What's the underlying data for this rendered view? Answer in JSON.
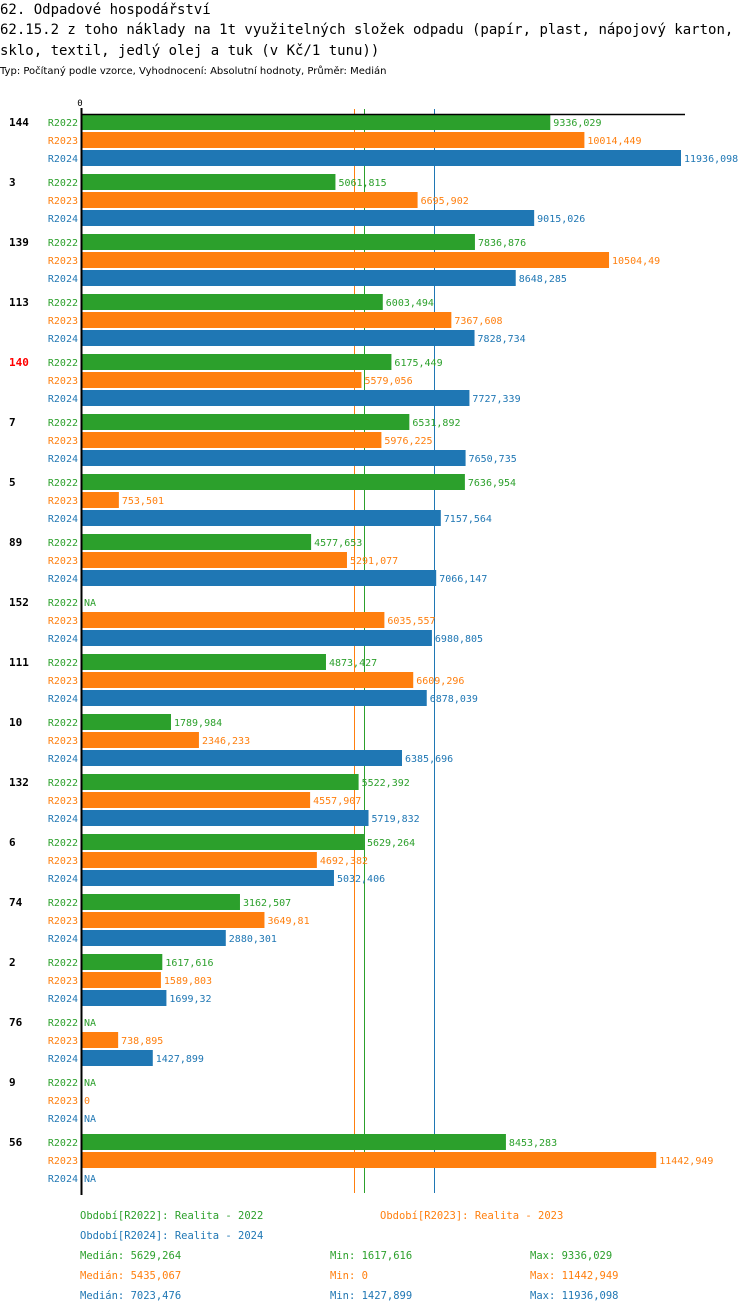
{
  "header": {
    "title": "62. Odpadové hospodářství",
    "subtitle": "62.15.2 z toho náklady na 1t využitelných složek odpadu (papír, plast, nápojový karton, sklo, textil, jedlý olej a tuk (v Kč/1 tunu))",
    "meta": "Typ: Počítaný podle vzorce, Vyhodnocení: Absolutní hodnoty, Průměr: Medián"
  },
  "colors": {
    "R2022": "#2ca02c",
    "R2023": "#ff7f0e",
    "R2024": "#1f77b4",
    "highlight": "#ff0000",
    "axis": "#000000"
  },
  "chart_data": {
    "type": "bar",
    "orientation": "horizontal",
    "title": "62.15.2 z toho náklady na 1t využitelných složek odpadu (papír, plast, nápojový karton, sklo, textil, jedlý olej a tuk (v Kč/1 tunu))",
    "xlabel": "",
    "ylabel": "",
    "x_tick_labels": [
      "0"
    ],
    "xlim": [
      0,
      11936.098
    ],
    "grid": false,
    "highlighted_category": "140",
    "categories": [
      "144",
      "3",
      "139",
      "113",
      "140",
      "7",
      "5",
      "89",
      "152",
      "111",
      "10",
      "132",
      "6",
      "74",
      "2",
      "76",
      "9",
      "56"
    ],
    "series": [
      {
        "name": "R2022",
        "values": [
          9336.029,
          5061.815,
          7836.876,
          6003.494,
          6175.449,
          6531.892,
          7636.954,
          4577.653,
          null,
          4873.427,
          1789.984,
          5522.392,
          5629.264,
          3162.507,
          1617.616,
          null,
          null,
          8453.283
        ],
        "labels": [
          "9336,029",
          "5061,815",
          "7836,876",
          "6003,494",
          "6175,449",
          "6531,892",
          "7636,954",
          "4577,653",
          "NA",
          "4873,427",
          "1789,984",
          "5522,392",
          "5629,264",
          "3162,507",
          "1617,616",
          "NA",
          "NA",
          "8453,283"
        ],
        "median": 5629.264
      },
      {
        "name": "R2023",
        "values": [
          10014.449,
          6695.902,
          10504.49,
          7367.608,
          5579.056,
          5976.225,
          753.501,
          5291.077,
          6035.557,
          6609.296,
          2346.233,
          4557.907,
          4692.382,
          3649.81,
          1589.803,
          738.895,
          0,
          11442.949
        ],
        "labels": [
          "10014,449",
          "6695,902",
          "10504,49",
          "7367,608",
          "5579,056",
          "5976,225",
          "753,501",
          "5291,077",
          "6035,557",
          "6609,296",
          "2346,233",
          "4557,907",
          "4692,382",
          "3649,81",
          "1589,803",
          "738,895",
          "0",
          "11442,949"
        ],
        "median": 5435.067
      },
      {
        "name": "R2024",
        "values": [
          11936.098,
          9015.026,
          8648.285,
          7828.734,
          7727.339,
          7650.735,
          7157.564,
          7066.147,
          6980.805,
          6878.039,
          6385.696,
          5719.832,
          5032.406,
          2880.301,
          1699.32,
          1427.899,
          null,
          null
        ],
        "labels": [
          "11936,098",
          "9015,026",
          "8648,285",
          "7828,734",
          "7727,339",
          "7650,735",
          "7157,564",
          "7066,147",
          "6980,805",
          "6878,039",
          "6385,696",
          "5719,832",
          "5032,406",
          "2880,301",
          "1699,32",
          "1427,899",
          "NA",
          "NA"
        ],
        "median": 7023.476
      }
    ],
    "legend": {
      "placement": "bottom",
      "periods": [
        "Období[R2022]: Realita - 2022",
        "Období[R2023]: Realita - 2023",
        "Období[R2024]: Realita - 2024"
      ],
      "stats": [
        {
          "median": "Medián: 5629,264",
          "min": "Min: 1617,616",
          "max": "Max: 9336,029"
        },
        {
          "median": "Medián: 5435,067",
          "min": "Min: 0",
          "max": "Max: 11442,949"
        },
        {
          "median": "Medián: 7023,476",
          "min": "Min: 1427,899",
          "max": "Max: 11936,098"
        }
      ]
    }
  }
}
